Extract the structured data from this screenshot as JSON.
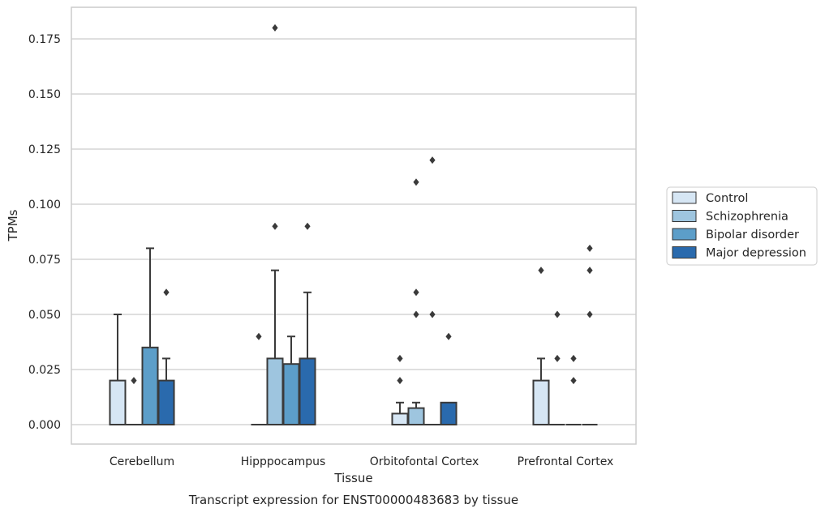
{
  "chart_data": {
    "type": "box",
    "title": "",
    "caption": "Transcript expression for ENST00000483683 by tissue",
    "xlabel": "Tissue",
    "ylabel": "TPMs",
    "ylim": [
      -0.009,
      0.19
    ],
    "yticks": [
      0.0,
      0.025,
      0.05,
      0.075,
      0.1,
      0.125,
      0.15,
      0.175
    ],
    "ytick_labels": [
      "0.000",
      "0.025",
      "0.050",
      "0.075",
      "0.100",
      "0.125",
      "0.150",
      "0.175"
    ],
    "grid": "horizontal",
    "legend_position": "right",
    "categories": [
      "Cerebellum",
      "Hipppocampus",
      "Orbitofontal Cortex",
      "Prefrontal Cortex"
    ],
    "series": [
      {
        "name": "Control",
        "color": "#d6e6f4",
        "boxes": [
          {
            "q1": 0.0,
            "median": 0.0,
            "q3": 0.02,
            "whisker_low": 0.0,
            "whisker_high": 0.05,
            "outliers": []
          },
          {
            "q1": 0.0,
            "median": 0.0,
            "q3": 0.0,
            "whisker_low": 0.0,
            "whisker_high": 0.0,
            "outliers": [
              0.04
            ]
          },
          {
            "q1": 0.0,
            "median": 0.0,
            "q3": 0.005,
            "whisker_low": 0.0,
            "whisker_high": 0.01,
            "outliers": [
              0.02,
              0.03
            ]
          },
          {
            "q1": 0.0,
            "median": 0.0,
            "q3": 0.02,
            "whisker_low": 0.0,
            "whisker_high": 0.03,
            "outliers": [
              0.07
            ]
          }
        ]
      },
      {
        "name": "Schizophrenia",
        "color": "#9ec5df",
        "boxes": [
          {
            "q1": 0.0,
            "median": 0.0,
            "q3": 0.0,
            "whisker_low": 0.0,
            "whisker_high": 0.0,
            "outliers": [
              0.02
            ]
          },
          {
            "q1": 0.0,
            "median": 0.0,
            "q3": 0.03,
            "whisker_low": 0.0,
            "whisker_high": 0.07,
            "outliers": [
              0.09,
              0.18
            ]
          },
          {
            "q1": 0.0,
            "median": 0.0,
            "q3": 0.0075,
            "whisker_low": 0.0,
            "whisker_high": 0.01,
            "outliers": [
              0.05,
              0.06,
              0.11
            ]
          },
          {
            "q1": 0.0,
            "median": 0.0,
            "q3": 0.0,
            "whisker_low": 0.0,
            "whisker_high": 0.0,
            "outliers": [
              0.03,
              0.05
            ]
          }
        ]
      },
      {
        "name": "Bipolar disorder",
        "color": "#5c9ec9",
        "boxes": [
          {
            "q1": 0.0,
            "median": 0.0,
            "q3": 0.035,
            "whisker_low": 0.0,
            "whisker_high": 0.08,
            "outliers": []
          },
          {
            "q1": 0.0,
            "median": 0.0,
            "q3": 0.0275,
            "whisker_low": 0.0,
            "whisker_high": 0.04,
            "outliers": []
          },
          {
            "q1": 0.0,
            "median": 0.0,
            "q3": 0.0,
            "whisker_low": 0.0,
            "whisker_high": 0.0,
            "outliers": [
              0.05,
              0.12
            ]
          },
          {
            "q1": 0.0,
            "median": 0.0,
            "q3": 0.0,
            "whisker_low": 0.0,
            "whisker_high": 0.0,
            "outliers": [
              0.02,
              0.03
            ]
          }
        ]
      },
      {
        "name": "Major depression",
        "color": "#2a6aad",
        "boxes": [
          {
            "q1": 0.0,
            "median": 0.0,
            "q3": 0.02,
            "whisker_low": 0.0,
            "whisker_high": 0.03,
            "outliers": [
              0.06
            ]
          },
          {
            "q1": 0.0,
            "median": 0.0,
            "q3": 0.03,
            "whisker_low": 0.0,
            "whisker_high": 0.06,
            "outliers": [
              0.09
            ]
          },
          {
            "q1": 0.0,
            "median": 0.0,
            "q3": 0.01,
            "whisker_low": 0.0,
            "whisker_high": 0.01,
            "outliers": [
              0.04
            ]
          },
          {
            "q1": 0.0,
            "median": 0.0,
            "q3": 0.0,
            "whisker_low": 0.0,
            "whisker_high": 0.0,
            "outliers": [
              0.05,
              0.07,
              0.08
            ]
          }
        ]
      }
    ]
  },
  "colors": {
    "box_edge": "#3a3a3a",
    "grid": "#cccccc",
    "axes_frame": "#cccccc",
    "text": "#262626"
  }
}
